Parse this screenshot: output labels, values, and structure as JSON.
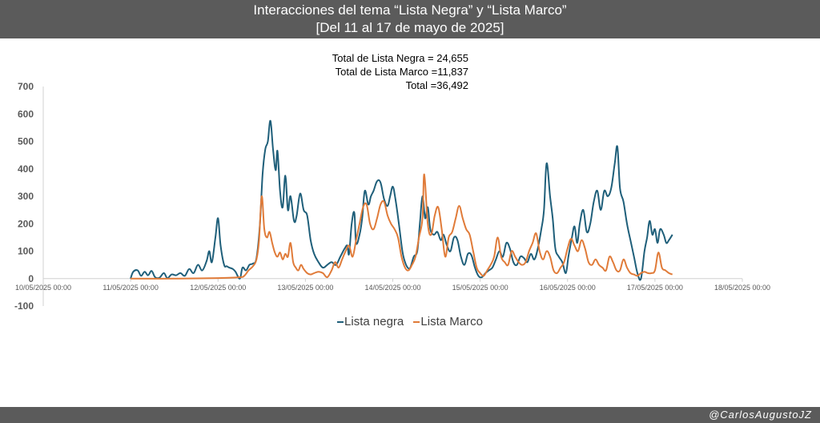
{
  "header": {
    "title_line1": "Interacciones del tema “Lista Negra” y “Lista Marco”",
    "title_line2": "[Del 11 al 17 de mayo de 2025]"
  },
  "totals": {
    "line1": "Total de Lista Negra = 24,655",
    "line2": "Total de Lista Marco =11,837",
    "line3": "Total =36,492"
  },
  "footer": {
    "credit": "@CarlosAugustoJZ"
  },
  "colors": {
    "lista_negra": "#1f5f7a",
    "lista_marco": "#e07b39"
  },
  "chart_data": {
    "type": "line",
    "ylim": [
      -100,
      700
    ],
    "yticks": [
      -100,
      0,
      100,
      200,
      300,
      400,
      500,
      600,
      700
    ],
    "xlim_days": [
      0,
      8
    ],
    "xticks": [
      {
        "day": 0,
        "label": "10/05/2025 00:00"
      },
      {
        "day": 1,
        "label": "11/05/2025 00:00"
      },
      {
        "day": 2,
        "label": "12/05/2025 00:00"
      },
      {
        "day": 3,
        "label": "13/05/2025 00:00"
      },
      {
        "day": 4,
        "label": "14/05/2025 00:00"
      },
      {
        "day": 5,
        "label": "15/05/2025 00:00"
      },
      {
        "day": 6,
        "label": "16/05/2025 00:00"
      },
      {
        "day": 7,
        "label": "17/05/2025 00:00"
      },
      {
        "day": 8,
        "label": "18/05/2025 00:00"
      }
    ],
    "legend_position": "bottom",
    "series": [
      {
        "name": "Lista negra",
        "points": [
          [
            1.0,
            0
          ],
          [
            1.03,
            25
          ],
          [
            1.08,
            30
          ],
          [
            1.12,
            10
          ],
          [
            1.16,
            25
          ],
          [
            1.2,
            12
          ],
          [
            1.24,
            28
          ],
          [
            1.28,
            5
          ],
          [
            1.33,
            3
          ],
          [
            1.38,
            20
          ],
          [
            1.42,
            2
          ],
          [
            1.47,
            15
          ],
          [
            1.52,
            12
          ],
          [
            1.57,
            20
          ],
          [
            1.62,
            10
          ],
          [
            1.67,
            35
          ],
          [
            1.72,
            20
          ],
          [
            1.77,
            50
          ],
          [
            1.82,
            30
          ],
          [
            1.87,
            65
          ],
          [
            1.9,
            100
          ],
          [
            1.93,
            60
          ],
          [
            1.97,
            150
          ],
          [
            2.0,
            220
          ],
          [
            2.03,
            120
          ],
          [
            2.07,
            50
          ],
          [
            2.1,
            45
          ],
          [
            2.13,
            40
          ],
          [
            2.17,
            35
          ],
          [
            2.2,
            25
          ],
          [
            2.25,
            0
          ],
          [
            2.28,
            40
          ],
          [
            2.32,
            30
          ],
          [
            2.36,
            50
          ],
          [
            2.4,
            55
          ],
          [
            2.44,
            75
          ],
          [
            2.48,
            200
          ],
          [
            2.51,
            380
          ],
          [
            2.54,
            470
          ],
          [
            2.57,
            500
          ],
          [
            2.6,
            575
          ],
          [
            2.63,
            470
          ],
          [
            2.66,
            395
          ],
          [
            2.68,
            465
          ],
          [
            2.71,
            320
          ],
          [
            2.74,
            260
          ],
          [
            2.77,
            375
          ],
          [
            2.8,
            250
          ],
          [
            2.83,
            300
          ],
          [
            2.87,
            210
          ],
          [
            2.9,
            230
          ],
          [
            2.94,
            310
          ],
          [
            2.98,
            250
          ],
          [
            3.02,
            230
          ],
          [
            3.06,
            140
          ],
          [
            3.1,
            90
          ],
          [
            3.15,
            60
          ],
          [
            3.2,
            40
          ],
          [
            3.25,
            50
          ],
          [
            3.3,
            60
          ],
          [
            3.35,
            50
          ],
          [
            3.4,
            80
          ],
          [
            3.45,
            110
          ],
          [
            3.48,
            120
          ],
          [
            3.5,
            90
          ],
          [
            3.53,
            200
          ],
          [
            3.56,
            240
          ],
          [
            3.58,
            130
          ],
          [
            3.62,
            160
          ],
          [
            3.65,
            220
          ],
          [
            3.68,
            320
          ],
          [
            3.72,
            270
          ],
          [
            3.75,
            300
          ],
          [
            3.78,
            320
          ],
          [
            3.82,
            355
          ],
          [
            3.86,
            350
          ],
          [
            3.9,
            290
          ],
          [
            3.94,
            265
          ],
          [
            3.97,
            300
          ],
          [
            4.0,
            335
          ],
          [
            4.03,
            290
          ],
          [
            4.07,
            200
          ],
          [
            4.11,
            100
          ],
          [
            4.14,
            60
          ],
          [
            4.17,
            40
          ],
          [
            4.2,
            40
          ],
          [
            4.24,
            80
          ],
          [
            4.28,
            100
          ],
          [
            4.31,
            200
          ],
          [
            4.34,
            300
          ],
          [
            4.37,
            220
          ],
          [
            4.4,
            260
          ],
          [
            4.43,
            180
          ],
          [
            4.47,
            160
          ],
          [
            4.51,
            170
          ],
          [
            4.55,
            140
          ],
          [
            4.58,
            160
          ],
          [
            4.62,
            120
          ],
          [
            4.66,
            100
          ],
          [
            4.7,
            150
          ],
          [
            4.74,
            140
          ],
          [
            4.78,
            80
          ],
          [
            4.82,
            50
          ],
          [
            4.86,
            90
          ],
          [
            4.9,
            85
          ],
          [
            4.94,
            40
          ],
          [
            4.98,
            10
          ],
          [
            5.02,
            5
          ],
          [
            5.06,
            20
          ],
          [
            5.1,
            30
          ],
          [
            5.14,
            40
          ],
          [
            5.18,
            70
          ],
          [
            5.22,
            100
          ],
          [
            5.26,
            80
          ],
          [
            5.3,
            130
          ],
          [
            5.34,
            110
          ],
          [
            5.38,
            60
          ],
          [
            5.42,
            50
          ],
          [
            5.46,
            80
          ],
          [
            5.5,
            75
          ],
          [
            5.54,
            60
          ],
          [
            5.58,
            90
          ],
          [
            5.62,
            70
          ],
          [
            5.66,
            110
          ],
          [
            5.7,
            180
          ],
          [
            5.73,
            250
          ],
          [
            5.76,
            420
          ],
          [
            5.8,
            300
          ],
          [
            5.83,
            220
          ],
          [
            5.86,
            110
          ],
          [
            5.9,
            80
          ],
          [
            5.94,
            60
          ],
          [
            5.98,
            20
          ],
          [
            6.01,
            80
          ],
          [
            6.05,
            150
          ],
          [
            6.08,
            190
          ],
          [
            6.11,
            130
          ],
          [
            6.14,
            200
          ],
          [
            6.18,
            250
          ],
          [
            6.22,
            170
          ],
          [
            6.26,
            200
          ],
          [
            6.3,
            280
          ],
          [
            6.34,
            320
          ],
          [
            6.38,
            250
          ],
          [
            6.42,
            320
          ],
          [
            6.46,
            300
          ],
          [
            6.5,
            330
          ],
          [
            6.54,
            420
          ],
          [
            6.57,
            480
          ],
          [
            6.6,
            330
          ],
          [
            6.64,
            280
          ],
          [
            6.68,
            200
          ],
          [
            6.72,
            140
          ],
          [
            6.76,
            80
          ],
          [
            6.8,
            20
          ],
          [
            6.84,
            0
          ],
          [
            6.88,
            100
          ],
          [
            6.91,
            150
          ],
          [
            6.94,
            210
          ],
          [
            6.97,
            160
          ],
          [
            7.0,
            180
          ],
          [
            7.03,
            130
          ],
          [
            7.06,
            180
          ],
          [
            7.1,
            160
          ],
          [
            7.13,
            130
          ],
          [
            7.16,
            140
          ],
          [
            7.2,
            160
          ]
        ]
      },
      {
        "name": "Lista Marco",
        "points": [
          [
            1.0,
            0
          ],
          [
            1.5,
            0
          ],
          [
            2.0,
            2
          ],
          [
            2.25,
            5
          ],
          [
            2.3,
            10
          ],
          [
            2.35,
            30
          ],
          [
            2.4,
            45
          ],
          [
            2.44,
            70
          ],
          [
            2.47,
            140
          ],
          [
            2.5,
            300
          ],
          [
            2.53,
            180
          ],
          [
            2.56,
            150
          ],
          [
            2.59,
            170
          ],
          [
            2.62,
            130
          ],
          [
            2.65,
            95
          ],
          [
            2.68,
            80
          ],
          [
            2.71,
            95
          ],
          [
            2.74,
            70
          ],
          [
            2.77,
            90
          ],
          [
            2.8,
            80
          ],
          [
            2.83,
            130
          ],
          [
            2.86,
            60
          ],
          [
            2.89,
            40
          ],
          [
            2.92,
            30
          ],
          [
            2.95,
            50
          ],
          [
            2.98,
            35
          ],
          [
            3.02,
            20
          ],
          [
            3.06,
            15
          ],
          [
            3.1,
            20
          ],
          [
            3.15,
            25
          ],
          [
            3.2,
            20
          ],
          [
            3.25,
            5
          ],
          [
            3.3,
            30
          ],
          [
            3.34,
            60
          ],
          [
            3.38,
            40
          ],
          [
            3.42,
            70
          ],
          [
            3.46,
            100
          ],
          [
            3.5,
            120
          ],
          [
            3.54,
            80
          ],
          [
            3.58,
            140
          ],
          [
            3.62,
            200
          ],
          [
            3.66,
            260
          ],
          [
            3.7,
            270
          ],
          [
            3.74,
            200
          ],
          [
            3.78,
            180
          ],
          [
            3.82,
            220
          ],
          [
            3.86,
            270
          ],
          [
            3.9,
            280
          ],
          [
            3.94,
            230
          ],
          [
            3.98,
            200
          ],
          [
            4.02,
            180
          ],
          [
            4.06,
            150
          ],
          [
            4.1,
            80
          ],
          [
            4.14,
            40
          ],
          [
            4.18,
            30
          ],
          [
            4.22,
            50
          ],
          [
            4.26,
            80
          ],
          [
            4.3,
            150
          ],
          [
            4.34,
            220
          ],
          [
            4.36,
            380
          ],
          [
            4.4,
            200
          ],
          [
            4.44,
            160
          ],
          [
            4.48,
            230
          ],
          [
            4.52,
            260
          ],
          [
            4.56,
            180
          ],
          [
            4.6,
            80
          ],
          [
            4.64,
            150
          ],
          [
            4.68,
            170
          ],
          [
            4.72,
            220
          ],
          [
            4.76,
            265
          ],
          [
            4.8,
            220
          ],
          [
            4.84,
            180
          ],
          [
            4.88,
            160
          ],
          [
            4.92,
            100
          ],
          [
            4.96,
            40
          ],
          [
            5.0,
            20
          ],
          [
            5.04,
            10
          ],
          [
            5.08,
            30
          ],
          [
            5.12,
            50
          ],
          [
            5.16,
            80
          ],
          [
            5.2,
            150
          ],
          [
            5.24,
            80
          ],
          [
            5.28,
            60
          ],
          [
            5.32,
            50
          ],
          [
            5.36,
            100
          ],
          [
            5.4,
            80
          ],
          [
            5.44,
            60
          ],
          [
            5.48,
            50
          ],
          [
            5.52,
            60
          ],
          [
            5.56,
            100
          ],
          [
            5.6,
            130
          ],
          [
            5.64,
            165
          ],
          [
            5.68,
            100
          ],
          [
            5.72,
            70
          ],
          [
            5.76,
            100
          ],
          [
            5.8,
            80
          ],
          [
            5.84,
            30
          ],
          [
            5.88,
            20
          ],
          [
            5.92,
            40
          ],
          [
            5.96,
            60
          ],
          [
            6.0,
            110
          ],
          [
            6.04,
            145
          ],
          [
            6.08,
            120
          ],
          [
            6.12,
            100
          ],
          [
            6.16,
            140
          ],
          [
            6.2,
            110
          ],
          [
            6.24,
            60
          ],
          [
            6.28,
            50
          ],
          [
            6.32,
            70
          ],
          [
            6.36,
            50
          ],
          [
            6.4,
            40
          ],
          [
            6.44,
            30
          ],
          [
            6.48,
            80
          ],
          [
            6.52,
            60
          ],
          [
            6.56,
            30
          ],
          [
            6.6,
            30
          ],
          [
            6.64,
            70
          ],
          [
            6.68,
            40
          ],
          [
            6.72,
            20
          ],
          [
            6.76,
            15
          ],
          [
            6.8,
            10
          ],
          [
            6.84,
            20
          ],
          [
            6.88,
            25
          ],
          [
            6.92,
            20
          ],
          [
            6.96,
            20
          ],
          [
            7.0,
            30
          ],
          [
            7.04,
            95
          ],
          [
            7.08,
            40
          ],
          [
            7.12,
            30
          ],
          [
            7.16,
            20
          ],
          [
            7.2,
            15
          ]
        ]
      }
    ]
  }
}
